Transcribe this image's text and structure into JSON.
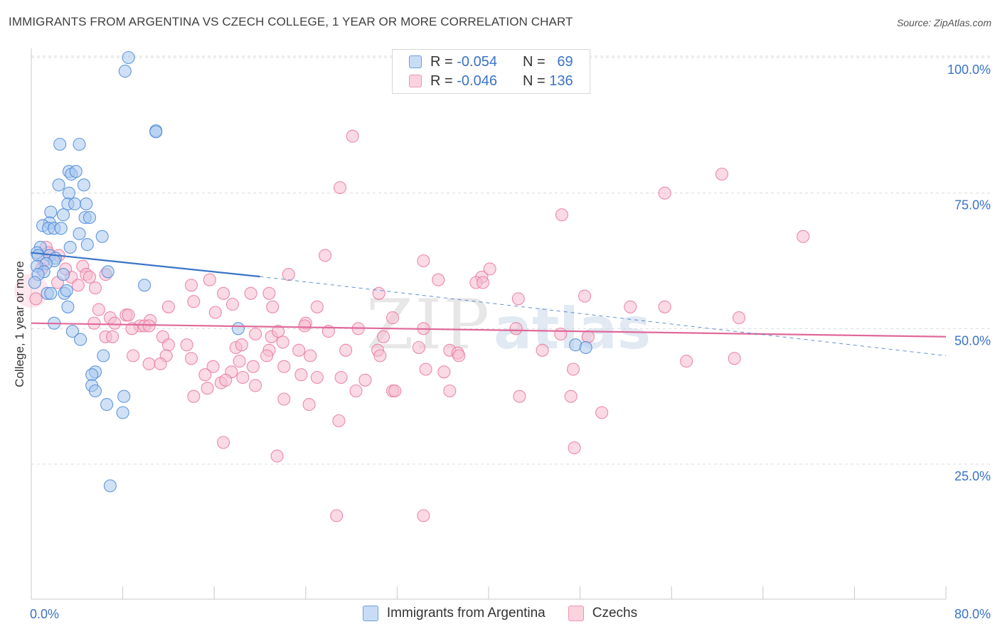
{
  "header": {
    "title": "IMMIGRANTS FROM ARGENTINA VS CZECH COLLEGE, 1 YEAR OR MORE CORRELATION CHART",
    "source": "Source: ZipAtlas.com"
  },
  "legend": {
    "rows": [
      {
        "r_label": "R = ",
        "r_value": "-0.054",
        "n_label": "N = ",
        "n_value": "69"
      },
      {
        "r_label": "R = ",
        "r_value": "-0.046",
        "n_label": "N = ",
        "n_value": "136"
      }
    ]
  },
  "colors": {
    "blue_fill": "#aac8ef",
    "blue_stroke": "#4a86d8",
    "blue_line": "#3a73c7",
    "pink_fill": "#f6bccd",
    "pink_stroke": "#e8789f",
    "pink_line": "#e0699a",
    "tick_label": "#3a73c7",
    "grid": "#dcdcdc"
  },
  "chart_data": {
    "type": "scatter",
    "title": "IMMIGRANTS FROM ARGENTINA VS CZECH COLLEGE, 1 YEAR OR MORE CORRELATION CHART",
    "xlabel": "",
    "ylabel": "College, 1 year or more",
    "xlim": [
      0,
      80
    ],
    "ylim": [
      0,
      104
    ],
    "x_tick_labels": [
      "0.0%",
      "80.0%"
    ],
    "y_ticks": [
      25,
      50,
      75,
      100
    ],
    "y_tick_labels": [
      "25.0%",
      "50.0%",
      "75.0%",
      "100.0%"
    ],
    "grid": "horizontal dashed",
    "legend_position": "top-center",
    "watermark": "ZIPatlas",
    "series": [
      {
        "name": "Immigrants from Argentina",
        "color": "blue",
        "r": -0.054,
        "n": 69,
        "trend_solid": [
          [
            0,
            64.0
          ],
          [
            20,
            59.6
          ]
        ],
        "trend_dashed": [
          [
            20,
            59.6
          ],
          [
            80,
            45.0
          ]
        ],
        "points": [
          [
            8.5,
            100
          ],
          [
            8.2,
            97.5
          ],
          [
            10.9,
            86.5
          ],
          [
            10.9,
            86.3
          ],
          [
            2.5,
            84
          ],
          [
            4.2,
            84
          ],
          [
            3.3,
            79
          ],
          [
            3.5,
            78.5
          ],
          [
            3.9,
            79
          ],
          [
            2.4,
            76.5
          ],
          [
            4.6,
            76.5
          ],
          [
            3.3,
            75
          ],
          [
            3.2,
            73
          ],
          [
            3.8,
            73
          ],
          [
            4.8,
            73
          ],
          [
            1.7,
            71.5
          ],
          [
            2.8,
            71
          ],
          [
            4.7,
            70.5
          ],
          [
            5.1,
            70.5
          ],
          [
            1.6,
            69.5
          ],
          [
            1.0,
            69
          ],
          [
            1.5,
            68.5
          ],
          [
            2.0,
            68.5
          ],
          [
            2.6,
            68.5
          ],
          [
            4.2,
            67.5
          ],
          [
            6.2,
            67
          ],
          [
            4.9,
            65.5
          ],
          [
            3.4,
            65
          ],
          [
            0.8,
            65
          ],
          [
            0.5,
            64
          ],
          [
            0.6,
            63.5
          ],
          [
            1.6,
            63.5
          ],
          [
            2.1,
            63
          ],
          [
            2.0,
            62.5
          ],
          [
            1.3,
            62
          ],
          [
            0.5,
            61.5
          ],
          [
            1.1,
            60.5
          ],
          [
            0.6,
            60
          ],
          [
            2.8,
            60
          ],
          [
            6.7,
            60.5
          ],
          [
            0.3,
            58.5
          ],
          [
            9.9,
            58
          ],
          [
            1.4,
            56.5
          ],
          [
            1.7,
            56.5
          ],
          [
            2.9,
            56.5
          ],
          [
            3.1,
            57
          ],
          [
            3.2,
            54
          ],
          [
            2.0,
            51
          ],
          [
            3.6,
            49.5
          ],
          [
            18.1,
            50
          ],
          [
            4.3,
            48
          ],
          [
            47.6,
            47
          ],
          [
            48.5,
            46.5
          ],
          [
            6.3,
            45
          ],
          [
            5.6,
            42
          ],
          [
            5.3,
            41.5
          ],
          [
            5.3,
            39.5
          ],
          [
            5.6,
            38.5
          ],
          [
            8.1,
            37.5
          ],
          [
            6.6,
            36
          ],
          [
            8.0,
            34.5
          ],
          [
            6.9,
            21
          ]
        ]
      },
      {
        "name": "Czechs",
        "color": "pink",
        "r": -0.046,
        "n": 136,
        "trend_solid": [
          [
            0,
            51.0
          ],
          [
            80,
            48.5
          ]
        ],
        "points": [
          [
            28.1,
            85.5
          ],
          [
            60.4,
            78.5
          ],
          [
            27.0,
            76
          ],
          [
            55.4,
            75
          ],
          [
            46.4,
            71
          ],
          [
            67.5,
            67
          ],
          [
            25.7,
            63.5
          ],
          [
            34.3,
            62.5
          ],
          [
            40.1,
            61
          ],
          [
            39.4,
            59.5
          ],
          [
            22.5,
            60
          ],
          [
            15.6,
            59
          ],
          [
            35.6,
            59
          ],
          [
            38.9,
            58.5
          ],
          [
            14.0,
            58
          ],
          [
            39.5,
            58.5
          ],
          [
            16.8,
            56.5
          ],
          [
            19.2,
            56.5
          ],
          [
            20.8,
            56.5
          ],
          [
            30.4,
            56.5
          ],
          [
            42.6,
            55.5
          ],
          [
            48.4,
            56
          ],
          [
            14.2,
            55
          ],
          [
            12.0,
            54
          ],
          [
            17.6,
            54.5
          ],
          [
            21.1,
            54
          ],
          [
            25.0,
            54
          ],
          [
            52.4,
            54
          ],
          [
            55.4,
            54
          ],
          [
            16.1,
            53
          ],
          [
            5.9,
            53.5
          ],
          [
            6.9,
            52
          ],
          [
            8.3,
            52.5
          ],
          [
            8.5,
            52.5
          ],
          [
            31.6,
            52
          ],
          [
            61.9,
            52
          ],
          [
            10.4,
            51.5
          ],
          [
            7.3,
            51
          ],
          [
            5.5,
            51
          ],
          [
            9.5,
            50.5
          ],
          [
            8.8,
            50
          ],
          [
            9.9,
            50.5
          ],
          [
            10.3,
            50.5
          ],
          [
            24.0,
            51
          ],
          [
            23.9,
            50.5
          ],
          [
            28.6,
            50
          ],
          [
            34.3,
            50
          ],
          [
            42.4,
            50
          ],
          [
            19.6,
            49
          ],
          [
            21.0,
            48.5
          ],
          [
            21.6,
            49.5
          ],
          [
            26.0,
            49.5
          ],
          [
            30.8,
            48.5
          ],
          [
            46.3,
            49
          ],
          [
            48.7,
            48.5
          ],
          [
            6.5,
            48.5
          ],
          [
            7.1,
            48.5
          ],
          [
            11.5,
            48.5
          ],
          [
            12.0,
            47
          ],
          [
            13.6,
            47
          ],
          [
            17.9,
            46.5
          ],
          [
            18.4,
            47
          ],
          [
            20.8,
            46
          ],
          [
            22.0,
            47.5
          ],
          [
            23.4,
            46
          ],
          [
            27.5,
            46
          ],
          [
            30.3,
            46
          ],
          [
            33.9,
            46.5
          ],
          [
            36.6,
            46
          ],
          [
            37.3,
            45.5
          ],
          [
            44.7,
            46
          ],
          [
            8.9,
            45
          ],
          [
            11.8,
            45
          ],
          [
            14.0,
            44.5
          ],
          [
            20.6,
            45
          ],
          [
            24.4,
            45
          ],
          [
            30.5,
            45
          ],
          [
            37.4,
            45
          ],
          [
            10.3,
            43.5
          ],
          [
            11.3,
            43.5
          ],
          [
            15.9,
            43
          ],
          [
            18.2,
            44
          ],
          [
            19.4,
            43
          ],
          [
            22.1,
            43
          ],
          [
            34.5,
            42.5
          ],
          [
            47.4,
            42.5
          ],
          [
            57.3,
            44
          ],
          [
            61.5,
            44.5
          ],
          [
            15.2,
            41.5
          ],
          [
            17.5,
            42
          ],
          [
            23.6,
            41.5
          ],
          [
            25.0,
            41
          ],
          [
            27.1,
            41
          ],
          [
            29.2,
            40.5
          ],
          [
            36.1,
            42
          ],
          [
            16.6,
            40
          ],
          [
            17.0,
            40.5
          ],
          [
            18.5,
            41
          ],
          [
            19.6,
            39.5
          ],
          [
            28.4,
            38.5
          ],
          [
            14.2,
            37.5
          ],
          [
            15.4,
            39
          ],
          [
            31.6,
            38.5
          ],
          [
            31.8,
            38.5
          ],
          [
            36.6,
            38.5
          ],
          [
            42.7,
            37.5
          ],
          [
            22.1,
            37
          ],
          [
            47.2,
            37.5
          ],
          [
            24.3,
            36
          ],
          [
            49.9,
            34.5
          ],
          [
            26.9,
            33
          ],
          [
            16.8,
            29
          ],
          [
            47.5,
            28
          ],
          [
            21.5,
            26.5
          ],
          [
            26.7,
            15.5
          ],
          [
            34.3,
            15.5
          ],
          [
            1.3,
            65
          ],
          [
            1.5,
            64
          ],
          [
            2.4,
            63.5
          ],
          [
            4.5,
            61.5
          ],
          [
            4.8,
            60
          ],
          [
            6.5,
            60
          ],
          [
            1.1,
            62.5
          ],
          [
            0.9,
            61
          ],
          [
            3.5,
            59.5
          ],
          [
            4.1,
            58
          ],
          [
            0.4,
            55.5
          ],
          [
            5.6,
            57.5
          ],
          [
            2.3,
            58.5
          ],
          [
            5.1,
            59.5
          ],
          [
            3.0,
            61
          ]
        ]
      }
    ]
  },
  "bottom_legend": {
    "items": [
      {
        "label": "Immigrants from Argentina"
      },
      {
        "label": "Czechs"
      }
    ]
  }
}
